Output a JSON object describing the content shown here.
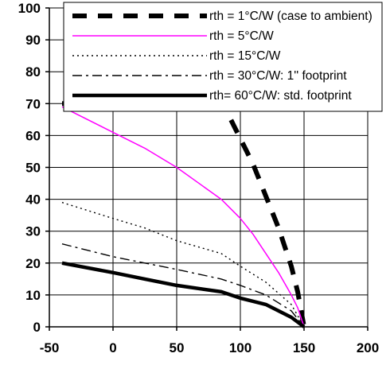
{
  "chart_data": {
    "type": "line",
    "title": "",
    "xlabel": "",
    "ylabel": "",
    "xlim": [
      -50,
      200
    ],
    "ylim": [
      0,
      100
    ],
    "x_ticks": [
      -50,
      0,
      50,
      100,
      150,
      200
    ],
    "y_ticks": [
      0,
      10,
      20,
      30,
      40,
      50,
      60,
      70,
      80,
      90,
      100
    ],
    "grid": "vertical and horizontal",
    "legend_position": "top-right",
    "series": [
      {
        "name": "rth = 1°C/W (case to ambient)",
        "style": "dashed-thick",
        "color": "#000000",
        "x": [
          -40,
          85,
          90,
          95,
          100,
          105,
          110,
          115,
          120,
          125,
          130,
          135,
          140,
          145,
          150
        ],
        "y": [
          70,
          70,
          67,
          63,
          59,
          55,
          51,
          46,
          41,
          36,
          31,
          25,
          19,
          11,
          0
        ]
      },
      {
        "name": "rth = 5°C/W",
        "style": "solid",
        "color": "#ff00ff",
        "x": [
          -40,
          0,
          25,
          50,
          85,
          100,
          110,
          120,
          130,
          140,
          145,
          150
        ],
        "y": [
          69,
          61,
          56,
          50,
          40,
          34,
          29,
          23,
          17,
          10,
          6,
          0
        ]
      },
      {
        "name": "rth = 15°C/W",
        "style": "dotted",
        "color": "#000000",
        "x": [
          -40,
          0,
          25,
          50,
          85,
          100,
          120,
          140,
          150
        ],
        "y": [
          39,
          34,
          31,
          27,
          23,
          19,
          14,
          7,
          0
        ]
      },
      {
        "name": "rth = 30°C/W: 1'' footprint",
        "style": "dash-dot",
        "color": "#000000",
        "x": [
          -40,
          0,
          25,
          50,
          85,
          100,
          120,
          140,
          150
        ],
        "y": [
          26,
          22,
          20,
          18,
          15,
          13,
          10,
          5,
          0
        ]
      },
      {
        "name": "rth= 60°C/W: std. footprint",
        "style": "solid-thick",
        "color": "#000000",
        "x": [
          -40,
          0,
          25,
          50,
          85,
          100,
          120,
          140,
          150
        ],
        "y": [
          20,
          17,
          15,
          13,
          11,
          9,
          7,
          3,
          0
        ]
      }
    ]
  }
}
